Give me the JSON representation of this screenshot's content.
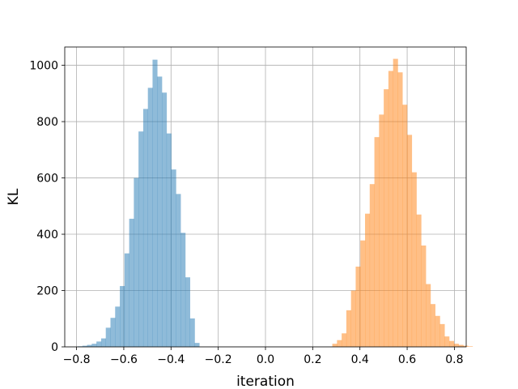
{
  "chart_data": {
    "type": "histogram",
    "title": "",
    "xlabel": "iteration",
    "ylabel": "KL",
    "xlim": [
      -0.85,
      0.85
    ],
    "ylim": [
      0,
      1065
    ],
    "xticks": [
      -0.8,
      -0.6,
      -0.4,
      -0.2,
      0.0,
      0.2,
      0.4,
      0.6,
      0.8
    ],
    "xtick_labels": [
      "−0.8",
      "−0.6",
      "−0.4",
      "−0.2",
      "0.0",
      "0.2",
      "0.4",
      "0.6",
      "0.8"
    ],
    "yticks": [
      0,
      200,
      400,
      600,
      800,
      1000
    ],
    "ytick_labels": [
      "0",
      "200",
      "400",
      "600",
      "800",
      "1000"
    ],
    "grid": true,
    "bin_width": 0.0198,
    "series": [
      {
        "color": "#1f77b4",
        "opacity": 0.5,
        "bin_start": -0.795,
        "values": [
          2,
          4,
          7,
          11,
          19,
          30,
          68,
          103,
          143,
          216,
          332,
          455,
          600,
          765,
          845,
          920,
          1020,
          960,
          903,
          758,
          630,
          543,
          405,
          247,
          101,
          14
        ]
      },
      {
        "color": "#ff7f0e",
        "opacity": 0.5,
        "bin_start": 0.283,
        "values": [
          11,
          24,
          48,
          130,
          200,
          285,
          378,
          473,
          578,
          745,
          825,
          915,
          980,
          1023,
          975,
          860,
          753,
          620,
          470,
          360,
          223,
          152,
          110,
          81,
          37,
          21,
          11,
          7,
          4,
          2
        ]
      }
    ]
  }
}
